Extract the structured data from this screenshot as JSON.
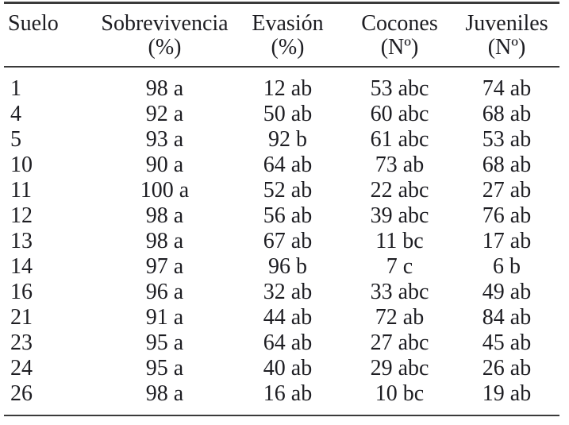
{
  "table": {
    "columns": [
      {
        "label": "Suelo",
        "unit": ""
      },
      {
        "label": "Sobrevivencia",
        "unit": "(%)"
      },
      {
        "label": "Evasión",
        "unit": "(%)"
      },
      {
        "label": "Cocones",
        "unit": "(Nº)"
      },
      {
        "label": "Juveniles",
        "unit": "(Nº)"
      }
    ],
    "rows": [
      [
        "1",
        "98 a",
        "12 ab",
        "53 abc",
        "74 ab"
      ],
      [
        "4",
        "92 a",
        "50 ab",
        "60 abc",
        "68 ab"
      ],
      [
        "5",
        "93 a",
        "92 b",
        "61 abc",
        "53 ab"
      ],
      [
        "10",
        "90 a",
        "64 ab",
        "73 ab",
        "68 ab"
      ],
      [
        "11",
        "100 a",
        "52 ab",
        "22 abc",
        "27 ab"
      ],
      [
        "12",
        "98 a",
        "56 ab",
        "39 abc",
        "76 ab"
      ],
      [
        "13",
        "98 a",
        "67 ab",
        "11 bc",
        "17 ab"
      ],
      [
        "14",
        "97 a",
        "96 b",
        "7 c",
        "6 b"
      ],
      [
        "16",
        "96 a",
        "32 ab",
        "33 abc",
        "49 ab"
      ],
      [
        "21",
        "91 a",
        "44 ab",
        "72 ab",
        "84 ab"
      ],
      [
        "23",
        "95 a",
        "64 ab",
        "27 abc",
        "45 ab"
      ],
      [
        "24",
        "95 a",
        "40 ab",
        "29 abc",
        "26 ab"
      ],
      [
        "26",
        "98 a",
        "16 ab",
        "10 bc",
        "19 ab"
      ]
    ]
  },
  "colors": {
    "text": "#1d1d22",
    "rule": "#3a3a3a",
    "background": "#ffffff"
  }
}
